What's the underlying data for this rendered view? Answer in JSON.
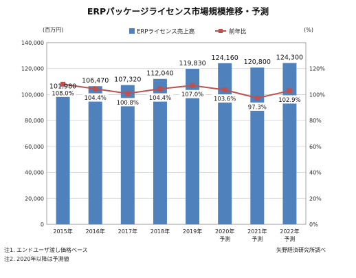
{
  "chart_data": {
    "type": "bar",
    "title": "ERPパッケージライセンス市場規模推移・予測",
    "left_axis_unit": "(百万円)",
    "right_axis_unit": "(%)",
    "categories": [
      [
        "2015年"
      ],
      [
        "2016年"
      ],
      [
        "2017年"
      ],
      [
        "2018年"
      ],
      [
        "2019年"
      ],
      [
        "2020年",
        "予測"
      ],
      [
        "2021年",
        "予測"
      ],
      [
        "2022年",
        "予測"
      ]
    ],
    "series": [
      {
        "name": "ERPライセンス売上高",
        "type": "bar",
        "axis": "left",
        "values": [
          101980,
          106470,
          107320,
          112040,
          119830,
          124160,
          120800,
          124300
        ],
        "labels": [
          "101,980",
          "106,470",
          "107,320",
          "112,040",
          "119,830",
          "124,160",
          "120,800",
          "124,300"
        ],
        "color": "#4f81bd"
      },
      {
        "name": "前年比",
        "type": "line",
        "axis": "right",
        "values": [
          108.0,
          104.4,
          100.8,
          104.4,
          107.0,
          103.6,
          97.3,
          102.9
        ],
        "labels": [
          "108.0%",
          "104.4%",
          "100.8%",
          "104.4%",
          "107.0%",
          "103.6%",
          "97.3%",
          "102.9%"
        ],
        "color": "#c0504d"
      }
    ],
    "left_axis": {
      "min": 0,
      "max": 140000,
      "ticks": [
        0,
        20000,
        40000,
        60000,
        80000,
        100000,
        120000,
        140000
      ],
      "tick_labels": [
        "0",
        "20,000",
        "40,000",
        "60,000",
        "80,000",
        "100,000",
        "120,000",
        "140,000"
      ]
    },
    "right_axis": {
      "min": 0,
      "max": 140,
      "ticks": [
        0,
        20,
        40,
        60,
        80,
        100,
        120
      ],
      "tick_labels": [
        "0%",
        "20%",
        "40%",
        "60%",
        "80%",
        "100%",
        "120%"
      ]
    },
    "grid": true,
    "legend_position": "top"
  },
  "notes": {
    "note1": "注1.  エンドユーザ渡し価格ベース",
    "note2": "注2.  2020年以降は予測値",
    "source": "矢野経済研究所調べ"
  }
}
